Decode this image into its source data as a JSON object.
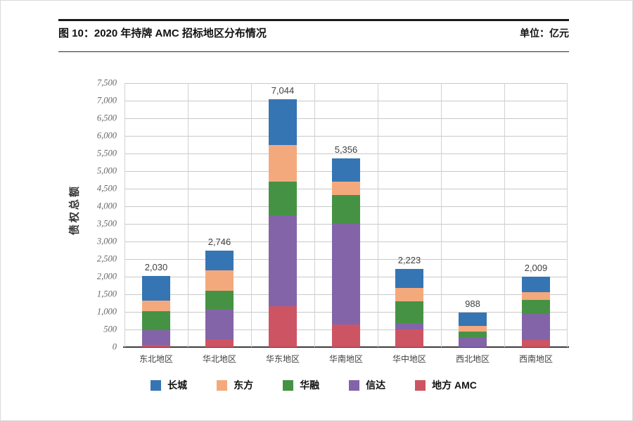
{
  "header": {
    "title": "图 10：2020 年持牌 AMC 招标地区分布情况",
    "unit_label": "单位：亿元"
  },
  "chart_data": {
    "type": "bar",
    "stacked": true,
    "ylabel": "债权总额",
    "ylim": [
      0,
      7500
    ],
    "ytick_step": 500,
    "ytick_labels": [
      "0",
      "500",
      "1,000",
      "1,500",
      "2,000",
      "2,500",
      "3,000",
      "3,500",
      "4,000",
      "4,500",
      "5,000",
      "5,500",
      "6,000",
      "6,500",
      "7,000",
      "7,500"
    ],
    "grid": true,
    "legend_position": "bottom",
    "categories": [
      "东北地区",
      "华北地区",
      "华东地区",
      "华南地区",
      "华中地区",
      "西北地区",
      "西南地区"
    ],
    "totals": [
      2030,
      2746,
      7044,
      5356,
      2223,
      988,
      2009
    ],
    "total_labels": [
      "2,030",
      "2,746",
      "7,044",
      "5,356",
      "2,223",
      "988",
      "2,009"
    ],
    "stack_order_bottom_to_top": [
      "地方 AMC",
      "信达",
      "华融",
      "东方",
      "长城"
    ],
    "series": [
      {
        "name": "长城",
        "color": "#3575B4",
        "values": [
          718,
          566,
          1312,
          656,
          543,
          396,
          449
        ]
      },
      {
        "name": "东方",
        "color": "#F4A97C",
        "values": [
          300,
          588,
          1040,
          388,
          388,
          160,
          214
        ]
      },
      {
        "name": "华融",
        "color": "#469244",
        "values": [
          532,
          512,
          946,
          812,
          612,
          172,
          400
        ]
      },
      {
        "name": "信达",
        "color": "#8464A8",
        "values": [
          420,
          868,
          2580,
          2868,
          180,
          260,
          746
        ]
      },
      {
        "name": "地方 AMC",
        "color": "#CD5563",
        "values": [
          60,
          212,
          1166,
          632,
          500,
          0,
          200
        ]
      }
    ],
    "colors": {
      "gridline": "#c9c9c9",
      "axis": "#3d3d3d",
      "tick_text": "#666666",
      "label_text": "#3f3f3f"
    }
  }
}
